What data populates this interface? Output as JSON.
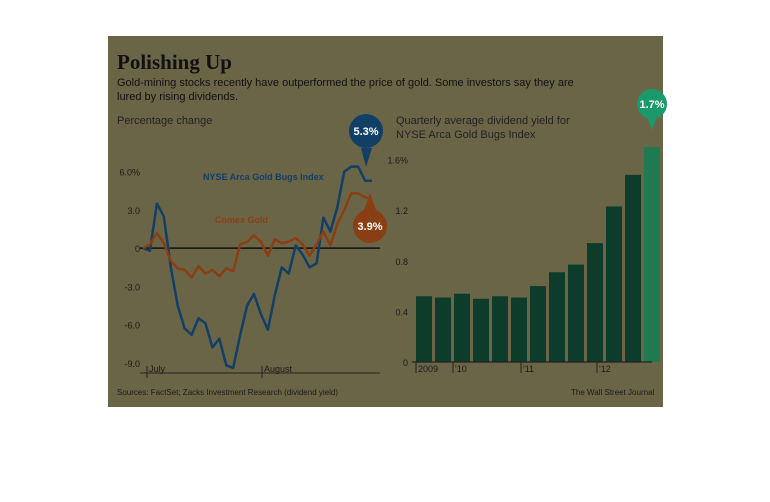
{
  "title": "Polishing Up",
  "subtitle": "Gold-mining stocks recently have outperformed the price of gold. Some investors say they are lured by rising dividends.",
  "left_subtitle": "Percentage change",
  "right_subtitle": "Quarterly average dividend yield for NYSE Arca Gold Bugs Index",
  "source": "Sources: FactSet; Zacks Investment Research (dividend yield)",
  "credit": "The Wall Street Journal",
  "colors": {
    "background": "#6b6548",
    "gold_bugs": "#123f66",
    "comex": "#8a3e13",
    "bars": "#0d3d2a",
    "last_bar": "#1f7a52",
    "callout": "#1a9a6a"
  },
  "chart_data": [
    {
      "type": "line",
      "ylabel": "Percentage change",
      "ylim": [
        -9.8,
        7
      ],
      "yticks": [
        6,
        3,
        0,
        -3,
        -6,
        -9
      ],
      "ytick_labels": [
        "6.0%",
        "3.0",
        "0",
        "-3.0",
        "-6.0",
        "-9.0"
      ],
      "x_labels": [
        "July",
        "August"
      ],
      "grid": false,
      "series": [
        {
          "name": "NYSE Arca Gold Bugs Index",
          "end_label": "5.3%",
          "values": [
            0,
            -0.2,
            3.5,
            2.5,
            -1.5,
            -4.5,
            -6.3,
            -6.8,
            -5.5,
            -5.9,
            -7.8,
            -7.1,
            -9.2,
            -9.4,
            -6.8,
            -4.5,
            -3.6,
            -5.2,
            -6.4,
            -3.7,
            -1.5,
            -2.0,
            0.2,
            -0.5,
            -1.5,
            -1.2,
            2.4,
            1.3,
            3.2,
            6.0,
            6.4,
            6.4,
            5.3,
            5.3
          ]
        },
        {
          "name": "Comex Gold",
          "end_label": "3.9%",
          "values": [
            0,
            0.3,
            1.2,
            0.4,
            -1.0,
            -1.6,
            -1.7,
            -2.3,
            -1.4,
            -2.0,
            -1.7,
            -2.2,
            -1.6,
            -1.8,
            0.3,
            0.5,
            1.0,
            0.5,
            -0.6,
            0.7,
            0.4,
            0.5,
            0.8,
            0.3,
            -0.6,
            0.3,
            1.3,
            0.2,
            1.9,
            3.0,
            4.3,
            4.3,
            4.0,
            3.9
          ]
        }
      ]
    },
    {
      "type": "bar",
      "ylim": [
        0,
        1.7
      ],
      "yticks": [
        0,
        0.4,
        0.8,
        1.2,
        1.6
      ],
      "ytick_labels": [
        "0",
        "0.4",
        "0.8",
        "1.2",
        "1.6%"
      ],
      "x_labels": [
        "2009",
        "'10",
        "'11",
        "'12"
      ],
      "values": [
        0.52,
        0.51,
        0.54,
        0.5,
        0.52,
        0.51,
        0.6,
        0.71,
        0.77,
        0.94,
        1.23,
        1.48,
        1.7
      ],
      "callout": "1.7%"
    }
  ]
}
